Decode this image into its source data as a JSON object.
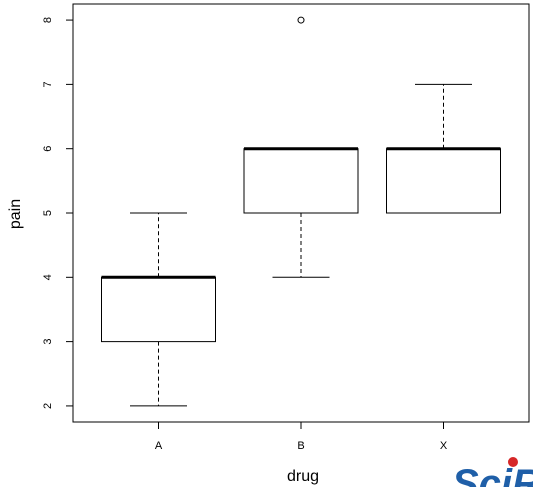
{
  "chart_data": {
    "type": "box",
    "title": "",
    "xlabel": "drug",
    "ylabel": "pain",
    "categories": [
      "A",
      "B",
      "X"
    ],
    "ylim": [
      1.75,
      8.25
    ],
    "yticks": [
      2,
      3,
      4,
      5,
      6,
      7,
      8
    ],
    "boxes": [
      {
        "category": "A",
        "whisker_low": 2,
        "q1": 3,
        "median": 4,
        "q3": 4,
        "whisker_high": 5,
        "outliers": []
      },
      {
        "category": "B",
        "whisker_low": 4,
        "q1": 5,
        "median": 6,
        "q3": 6,
        "whisker_high": 6,
        "outliers": [
          8
        ]
      },
      {
        "category": "X",
        "whisker_low": 5,
        "q1": 5,
        "median": 6,
        "q3": 6,
        "whisker_high": 7,
        "outliers": []
      }
    ],
    "grid": false,
    "legend": "none"
  },
  "watermark": {
    "text": "SciR",
    "colors": {
      "main": "#1f5fa8",
      "accent": "#d62728"
    }
  }
}
